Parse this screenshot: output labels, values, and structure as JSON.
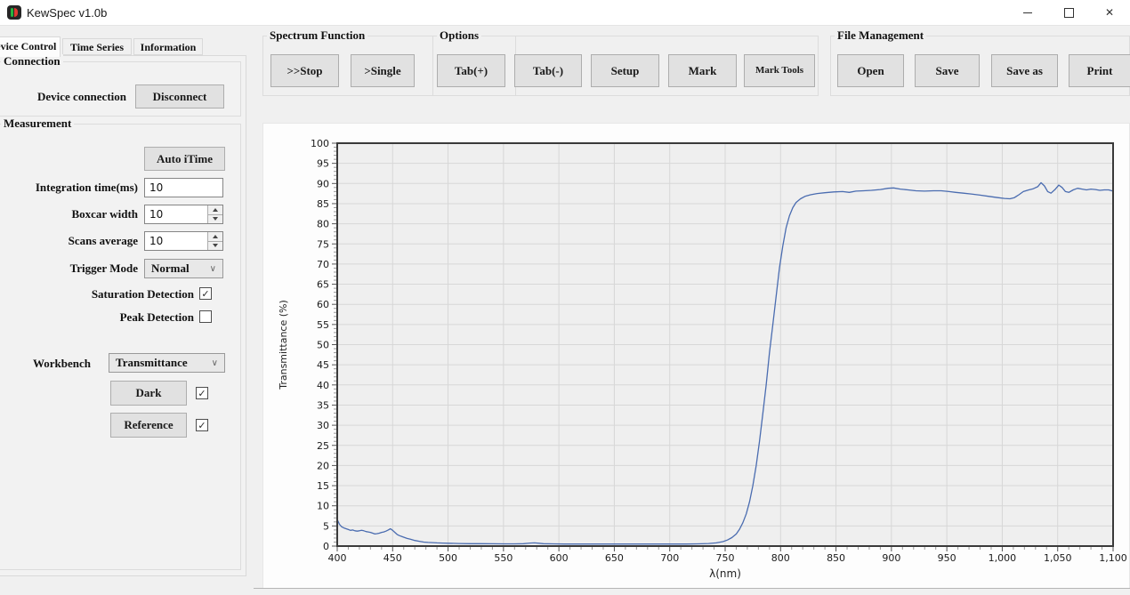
{
  "window": {
    "title": "KewSpec v1.0b"
  },
  "icons": {
    "close": "✕",
    "check": "✓",
    "chevron_down": "∨"
  },
  "tabs": {
    "device_control": "Device Control",
    "time_series": "Time Series",
    "information": "Information"
  },
  "connection": {
    "title": "Connection",
    "device_connection_label": "Device connection",
    "disconnect_button": "Disconnect"
  },
  "measurement": {
    "title": "Measurement",
    "auto_itime_button": "Auto iTime",
    "integration_time_label": "Integration time(ms)",
    "integration_time_value": "10",
    "boxcar_width_label": "Boxcar width",
    "boxcar_width_value": "10",
    "scans_average_label": "Scans average",
    "scans_average_value": "10",
    "trigger_mode_label": "Trigger Mode",
    "trigger_mode_value": "Normal",
    "saturation_detection_label": "Saturation Detection",
    "saturation_detection_checked": true,
    "peak_detection_label": "Peak Detection",
    "peak_detection_checked": false,
    "workbench_label": "Workbench",
    "workbench_value": "Transmittance",
    "dark_button": "Dark",
    "dark_checked": true,
    "reference_button": "Reference",
    "reference_checked": true
  },
  "toolbar": {
    "spectrum_function": {
      "title": "Spectrum Function",
      "stop_button": ">>Stop",
      "single_button": ">Single"
    },
    "options": {
      "title": "Options",
      "tab_plus_button": "Tab(+)",
      "tab_minus_button": "Tab(-)",
      "setup_button": "Setup",
      "mark_button": "Mark",
      "mark_tools_button": "Mark Tools"
    },
    "file_management": {
      "title": "File Management",
      "open_button": "Open",
      "save_button": "Save",
      "save_as_button": "Save as",
      "print_button": "Print"
    }
  },
  "chart_data": {
    "type": "line",
    "title": "",
    "xlabel": "λ(nm)",
    "ylabel": "Transmittance (%)",
    "xlim": [
      400,
      1100
    ],
    "ylim": [
      0,
      100
    ],
    "x_major_step": 50,
    "x_minor_step": 10,
    "y_major_step": 5,
    "y_minor_step": 1,
    "grid": true,
    "legend": "none",
    "plot_bg": "#efefef",
    "grid_color": "#d7d7d7",
    "frame_color": "#3a3a3a",
    "series": [
      {
        "name": "transmittance-spectrum",
        "color": "#4a6cb0",
        "points": [
          [
            400,
            6.6
          ],
          [
            402,
            5.4
          ],
          [
            404,
            4.8
          ],
          [
            406,
            4.5
          ],
          [
            408,
            4.3
          ],
          [
            410,
            4.1
          ],
          [
            412,
            3.9
          ],
          [
            414,
            4.0
          ],
          [
            416,
            3.8
          ],
          [
            418,
            3.7
          ],
          [
            420,
            3.8
          ],
          [
            422,
            3.9
          ],
          [
            424,
            3.8
          ],
          [
            426,
            3.6
          ],
          [
            428,
            3.5
          ],
          [
            430,
            3.4
          ],
          [
            432,
            3.2
          ],
          [
            434,
            3.0
          ],
          [
            436,
            3.1
          ],
          [
            438,
            3.2
          ],
          [
            440,
            3.4
          ],
          [
            442,
            3.5
          ],
          [
            444,
            3.7
          ],
          [
            446,
            4.0
          ],
          [
            448,
            4.3
          ],
          [
            450,
            3.9
          ],
          [
            452,
            3.4
          ],
          [
            454,
            2.9
          ],
          [
            456,
            2.6
          ],
          [
            458,
            2.4
          ],
          [
            460,
            2.2
          ],
          [
            463,
            1.9
          ],
          [
            466,
            1.7
          ],
          [
            470,
            1.4
          ],
          [
            474,
            1.2
          ],
          [
            478,
            1.0
          ],
          [
            482,
            0.9
          ],
          [
            486,
            0.85
          ],
          [
            490,
            0.8
          ],
          [
            495,
            0.75
          ],
          [
            500,
            0.7
          ],
          [
            510,
            0.65
          ],
          [
            520,
            0.6
          ],
          [
            530,
            0.6
          ],
          [
            540,
            0.58
          ],
          [
            550,
            0.55
          ],
          [
            560,
            0.55
          ],
          [
            568,
            0.6
          ],
          [
            574,
            0.75
          ],
          [
            578,
            0.8
          ],
          [
            582,
            0.7
          ],
          [
            586,
            0.6
          ],
          [
            595,
            0.55
          ],
          [
            605,
            0.5
          ],
          [
            620,
            0.5
          ],
          [
            640,
            0.5
          ],
          [
            660,
            0.5
          ],
          [
            680,
            0.5
          ],
          [
            700,
            0.5
          ],
          [
            715,
            0.5
          ],
          [
            725,
            0.55
          ],
          [
            735,
            0.65
          ],
          [
            742,
            0.8
          ],
          [
            748,
            1.1
          ],
          [
            752,
            1.5
          ],
          [
            756,
            2.1
          ],
          [
            760,
            3.0
          ],
          [
            763,
            4.2
          ],
          [
            766,
            5.8
          ],
          [
            769,
            8.0
          ],
          [
            772,
            11
          ],
          [
            775,
            15
          ],
          [
            778,
            20
          ],
          [
            781,
            26
          ],
          [
            784,
            33
          ],
          [
            787,
            40
          ],
          [
            790,
            48
          ],
          [
            793,
            55
          ],
          [
            796,
            62
          ],
          [
            799,
            69
          ],
          [
            802,
            74.5
          ],
          [
            805,
            79
          ],
          [
            808,
            82
          ],
          [
            811,
            84
          ],
          [
            814,
            85.3
          ],
          [
            818,
            86.2
          ],
          [
            822,
            86.8
          ],
          [
            827,
            87.2
          ],
          [
            833,
            87.5
          ],
          [
            840,
            87.7
          ],
          [
            848,
            87.9
          ],
          [
            856,
            88.0
          ],
          [
            862,
            87.8
          ],
          [
            868,
            88.1
          ],
          [
            875,
            88.2
          ],
          [
            882,
            88.3
          ],
          [
            890,
            88.5
          ],
          [
            897,
            88.8
          ],
          [
            902,
            88.9
          ],
          [
            908,
            88.6
          ],
          [
            915,
            88.4
          ],
          [
            922,
            88.2
          ],
          [
            930,
            88.1
          ],
          [
            938,
            88.2
          ],
          [
            945,
            88.2
          ],
          [
            952,
            88.0
          ],
          [
            958,
            87.8
          ],
          [
            965,
            87.6
          ],
          [
            972,
            87.4
          ],
          [
            980,
            87.1
          ],
          [
            988,
            86.8
          ],
          [
            996,
            86.5
          ],
          [
            1002,
            86.3
          ],
          [
            1007,
            86.2
          ],
          [
            1011,
            86.5
          ],
          [
            1015,
            87.2
          ],
          [
            1019,
            88.0
          ],
          [
            1024,
            88.4
          ],
          [
            1028,
            88.7
          ],
          [
            1032,
            89.2
          ],
          [
            1035,
            90.2
          ],
          [
            1038,
            89.4
          ],
          [
            1041,
            88.0
          ],
          [
            1044,
            87.6
          ],
          [
            1048,
            88.6
          ],
          [
            1051,
            89.6
          ],
          [
            1054,
            89.0
          ],
          [
            1057,
            88.0
          ],
          [
            1060,
            87.8
          ],
          [
            1064,
            88.4
          ],
          [
            1068,
            88.8
          ],
          [
            1072,
            88.6
          ],
          [
            1076,
            88.4
          ],
          [
            1080,
            88.6
          ],
          [
            1084,
            88.5
          ],
          [
            1088,
            88.3
          ],
          [
            1092,
            88.4
          ],
          [
            1096,
            88.4
          ],
          [
            1100,
            88.1
          ]
        ]
      }
    ]
  }
}
